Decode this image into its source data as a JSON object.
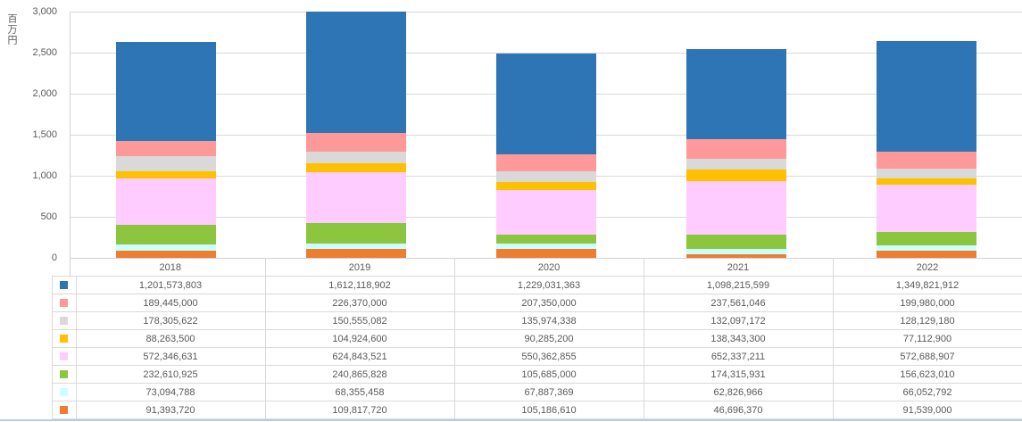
{
  "chart_data": {
    "type": "bar",
    "stacked": true,
    "title": "",
    "xlabel": "",
    "ylabel": "百万円",
    "categories": [
      "2018",
      "2019",
      "2020",
      "2021",
      "2022"
    ],
    "ylim": [
      0,
      3000
    ],
    "y_tick_labels": [
      "0",
      "500",
      "1,000",
      "1,500",
      "2,000",
      "2,500",
      "3,000"
    ],
    "grid": true,
    "legend_position": "data-table-left-keys",
    "stack_bottom_to_top": [
      "series-8",
      "series-7",
      "series-6",
      "series-5",
      "series-4",
      "series-3",
      "series-2",
      "series-1"
    ],
    "series": [
      {
        "name": "series-1",
        "key_color": "#2e75b6",
        "values": [
          1201573803,
          1612118902,
          1229031363,
          1098215599,
          1349821912
        ]
      },
      {
        "name": "series-2",
        "key_color": "#ff9999",
        "values": [
          189445000,
          226370000,
          207350000,
          237561046,
          199980000
        ]
      },
      {
        "name": "series-3",
        "key_color": "#d9d9d9",
        "values": [
          178305622,
          150555082,
          135974338,
          132097172,
          128129180
        ]
      },
      {
        "name": "series-4",
        "key_color": "#ffc000",
        "values": [
          88263500,
          104924600,
          90285200,
          138343300,
          77112900
        ]
      },
      {
        "name": "series-5",
        "key_color": "#ffccff",
        "values": [
          572346631,
          624843521,
          550362855,
          652337211,
          572688907
        ]
      },
      {
        "name": "series-6",
        "key_color": "#8cc63f",
        "values": [
          232610925,
          240865828,
          105685000,
          174315931,
          156623010
        ]
      },
      {
        "name": "series-7",
        "key_color": "#ccffff",
        "values": [
          73094788,
          68355458,
          67887369,
          62826966,
          66052792
        ]
      },
      {
        "name": "series-8",
        "key_color": "#ed7d31",
        "values": [
          91393720,
          109817720,
          105186610,
          46696370,
          91539000
        ]
      }
    ]
  }
}
